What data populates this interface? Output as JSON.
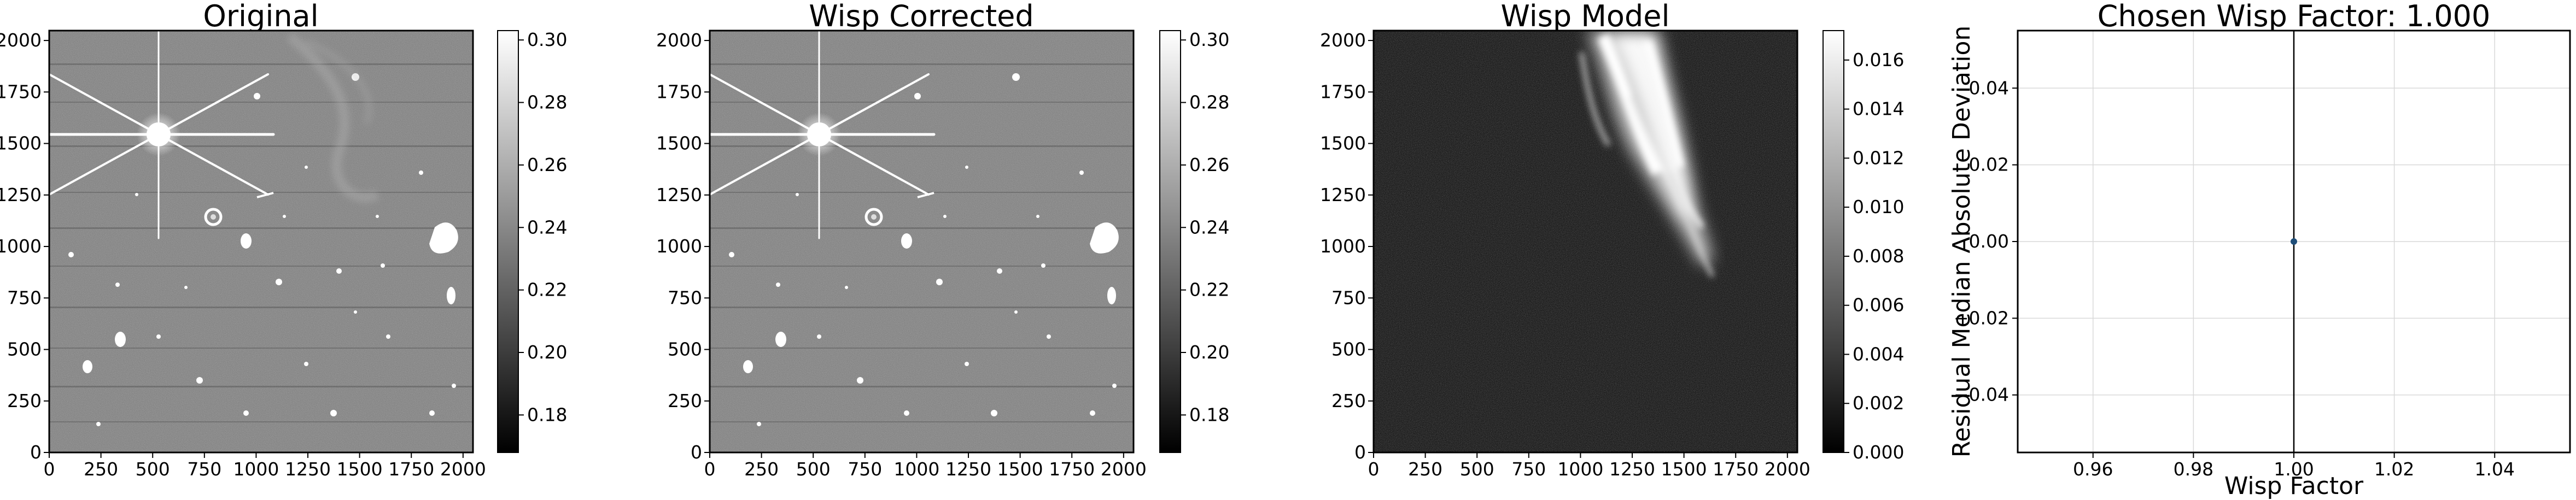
{
  "chart_data": [
    {
      "type": "image",
      "title": "Original",
      "xlim": [
        0,
        2048
      ],
      "ylim": [
        0,
        2048
      ],
      "xticks": [
        "0",
        "250",
        "500",
        "750",
        "1000",
        "1250",
        "1500",
        "1750",
        "2000"
      ],
      "yticks": [
        "0",
        "250",
        "500",
        "750",
        "1000",
        "1250",
        "1500",
        "1750",
        "2000"
      ],
      "colorbar": {
        "range": [
          0.168,
          0.303
        ],
        "ticks": [
          "0.18",
          "0.20",
          "0.22",
          "0.24",
          "0.26",
          "0.28",
          "0.30"
        ],
        "cmap": "gray"
      }
    },
    {
      "type": "image",
      "title": "Wisp Corrected",
      "xlim": [
        0,
        2048
      ],
      "ylim": [
        0,
        2048
      ],
      "xticks": [
        "0",
        "250",
        "500",
        "750",
        "1000",
        "1250",
        "1500",
        "1750",
        "2000"
      ],
      "yticks": [
        "0",
        "250",
        "500",
        "750",
        "1000",
        "1250",
        "1500",
        "1750",
        "2000"
      ],
      "colorbar": {
        "range": [
          0.168,
          0.303
        ],
        "ticks": [
          "0.18",
          "0.20",
          "0.22",
          "0.24",
          "0.26",
          "0.28",
          "0.30"
        ],
        "cmap": "gray"
      }
    },
    {
      "type": "image",
      "title": "Wisp Model",
      "xlim": [
        0,
        2048
      ],
      "ylim": [
        0,
        2048
      ],
      "xticks": [
        "0",
        "250",
        "500",
        "750",
        "1000",
        "1250",
        "1500",
        "1750",
        "2000"
      ],
      "yticks": [
        "0",
        "250",
        "500",
        "750",
        "1000",
        "1250",
        "1500",
        "1750",
        "2000"
      ],
      "colorbar": {
        "range": [
          0,
          0.0172
        ],
        "ticks": [
          "0.000",
          "0.002",
          "0.004",
          "0.006",
          "0.008",
          "0.010",
          "0.012",
          "0.014",
          "0.016"
        ],
        "cmap": "gray"
      }
    },
    {
      "type": "scatter",
      "title": "Chosen Wisp Factor: 1.000",
      "xlabel": "Wisp Factor",
      "ylabel": "Residual Median Absolute Deviation",
      "xlim": [
        0.945,
        1.055
      ],
      "ylim": [
        -0.055,
        0.055
      ],
      "xticks": [
        "0.96",
        "0.98",
        "1.00",
        "1.02",
        "1.04"
      ],
      "yticks": [
        "−0.04",
        "−0.02",
        "0.00",
        "0.02",
        "0.04"
      ],
      "grid": true,
      "points": [
        {
          "x": 1.0,
          "y": 0.0
        }
      ],
      "vline": 1.0,
      "point_color": "#1f4e79"
    }
  ]
}
